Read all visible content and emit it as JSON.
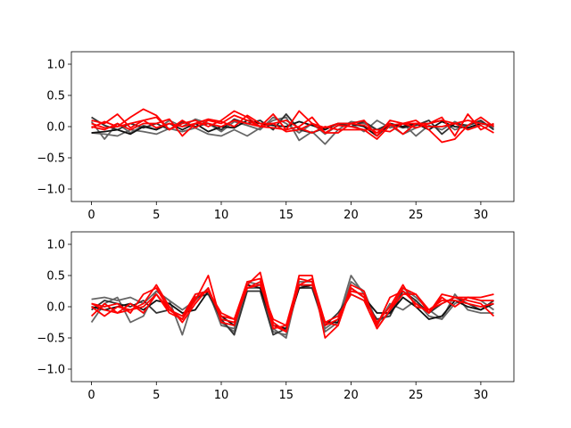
{
  "chart_data": [
    {
      "type": "line",
      "title": "",
      "xlabel": "",
      "ylabel": "",
      "xlim": [
        -1.55,
        32.55
      ],
      "ylim": [
        -1.2,
        1.2
      ],
      "xticks": [
        0,
        5,
        10,
        15,
        20,
        25,
        30
      ],
      "xtick_labels": [
        "0",
        "5",
        "10",
        "15",
        "20",
        "25",
        "30"
      ],
      "yticks": [
        -1.0,
        -0.5,
        0.0,
        0.5,
        1.0
      ],
      "ytick_labels": [
        "−1.0",
        "−0.5",
        "0.0",
        "0.5",
        "1.0"
      ],
      "grid": false,
      "legend": "none",
      "x": [
        0,
        1,
        2,
        3,
        4,
        5,
        6,
        7,
        8,
        9,
        10,
        11,
        12,
        13,
        14,
        15,
        16,
        17,
        18,
        19,
        20,
        21,
        22,
        23,
        24,
        25,
        26,
        27,
        28,
        29,
        30,
        31
      ],
      "series": [
        {
          "color": "#666666",
          "values": [
            -0.1,
            -0.12,
            -0.15,
            -0.05,
            -0.08,
            -0.12,
            -0.03,
            -0.08,
            -0.02,
            -0.12,
            -0.15,
            -0.05,
            -0.15,
            -0.02,
            0.1,
            0.15,
            -0.22,
            -0.08,
            -0.28,
            -0.05,
            0.08,
            0.05,
            -0.05,
            0.02,
            -0.12,
            -0.02,
            0.05,
            0.1,
            -0.05,
            0.02,
            0.08,
            -0.02
          ]
        },
        {
          "color": "#666666",
          "values": [
            0.08,
            -0.2,
            0.05,
            -0.1,
            0.02,
            -0.05,
            0.1,
            0.0,
            0.12,
            0.05,
            -0.08,
            0.08,
            0.02,
            -0.05,
            0.15,
            0.05,
            -0.1,
            0.05,
            -0.12,
            0.02,
            0.05,
            -0.08,
            0.1,
            -0.02,
            0.05,
            -0.15,
            0.02,
            -0.05,
            0.08,
            -0.02,
            0.05,
            0.0
          ]
        },
        {
          "color": "#333333",
          "values": [
            0.15,
            0.02,
            -0.05,
            0.05,
            -0.02,
            0.05,
            -0.05,
            0.08,
            0.0,
            0.05,
            -0.05,
            0.12,
            0.05,
            0.1,
            -0.05,
            0.2,
            -0.05,
            -0.1,
            -0.02,
            0.05,
            0.0,
            0.08,
            -0.05,
            0.05,
            -0.02,
            0.02,
            0.1,
            -0.12,
            0.05,
            0.02,
            0.1,
            -0.05
          ]
        },
        {
          "color": "#111111",
          "values": [
            -0.1,
            -0.08,
            -0.05,
            -0.12,
            0.0,
            -0.05,
            0.05,
            -0.05,
            0.05,
            -0.08,
            0.0,
            -0.02,
            0.1,
            0.05,
            0.02,
            0.0,
            0.08,
            0.02,
            -0.05,
            0.05,
            0.05,
            0.0,
            -0.15,
            0.05,
            0.0,
            0.05,
            -0.05,
            0.08,
            0.0,
            -0.02,
            0.05,
            0.02
          ]
        },
        {
          "color": "#ff0000",
          "values": [
            0.1,
            0.05,
            0.2,
            -0.02,
            0.1,
            0.15,
            -0.05,
            0.05,
            0.1,
            0.0,
            0.1,
            0.25,
            0.15,
            0.0,
            0.2,
            -0.05,
            0.25,
            0.05,
            -0.1,
            0.02,
            0.0,
            -0.05,
            -0.2,
            0.02,
            0.05,
            -0.02,
            0.05,
            0.15,
            -0.15,
            0.2,
            -0.05,
            0.05
          ]
        },
        {
          "color": "#ff0000",
          "values": [
            0.05,
            -0.02,
            0.0,
            0.15,
            0.28,
            0.18,
            -0.05,
            0.1,
            -0.02,
            0.1,
            0.05,
            0.18,
            0.1,
            0.0,
            -0.02,
            -0.05,
            0.0,
            0.15,
            -0.1,
            -0.1,
            0.05,
            0.02,
            -0.1,
            0.05,
            -0.12,
            0.05,
            0.0,
            0.0,
            0.05,
            -0.05,
            0.02,
            -0.1
          ]
        },
        {
          "color": "#ff0000",
          "values": [
            0.0,
            -0.05,
            0.05,
            -0.05,
            0.05,
            0.05,
            0.12,
            -0.15,
            0.05,
            0.05,
            0.0,
            0.1,
            0.05,
            0.0,
            0.05,
            -0.08,
            -0.05,
            0.05,
            -0.02,
            0.05,
            0.05,
            0.1,
            -0.15,
            0.1,
            0.05,
            0.1,
            -0.05,
            -0.25,
            -0.2,
            0.02,
            0.15,
            0.0
          ]
        },
        {
          "color": "#ff0000",
          "values": [
            -0.02,
            0.08,
            0.0,
            0.05,
            0.1,
            -0.02,
            0.05,
            0.0,
            0.05,
            0.12,
            0.08,
            0.0,
            0.18,
            0.05,
            0.05,
            0.1,
            -0.02,
            -0.1,
            0.0,
            -0.05,
            -0.05,
            -0.05,
            -0.05,
            -0.08,
            0.05,
            0.05,
            0.05,
            0.1,
            0.05,
            0.1,
            0.05,
            0.02
          ]
        }
      ]
    },
    {
      "type": "line",
      "title": "",
      "xlabel": "",
      "ylabel": "",
      "xlim": [
        -1.55,
        32.55
      ],
      "ylim": [
        -1.2,
        1.2
      ],
      "xticks": [
        0,
        5,
        10,
        15,
        20,
        25,
        30
      ],
      "xtick_labels": [
        "0",
        "5",
        "10",
        "15",
        "20",
        "25",
        "30"
      ],
      "yticks": [
        -1.0,
        -0.5,
        0.0,
        0.5,
        1.0
      ],
      "ytick_labels": [
        "−1.0",
        "−0.5",
        "0.0",
        "0.5",
        "1.0"
      ],
      "grid": false,
      "legend": "none",
      "x": [
        0,
        1,
        2,
        3,
        4,
        5,
        6,
        7,
        8,
        9,
        10,
        11,
        12,
        13,
        14,
        15,
        16,
        17,
        18,
        19,
        20,
        21,
        22,
        23,
        24,
        25,
        26,
        27,
        28,
        29,
        30,
        31
      ],
      "series": [
        {
          "color": "#666666",
          "values": [
            0.12,
            0.15,
            0.1,
            0.15,
            0.05,
            0.25,
            0.1,
            -0.45,
            0.2,
            0.25,
            -0.3,
            -0.35,
            0.3,
            0.3,
            -0.4,
            -0.45,
            0.35,
            0.3,
            -0.35,
            -0.2,
            0.5,
            0.2,
            -0.3,
            0.05,
            -0.05,
            0.1,
            -0.15,
            -0.2,
            0.2,
            -0.05,
            -0.1,
            -0.1
          ]
        },
        {
          "color": "#666666",
          "values": [
            -0.25,
            0.05,
            0.15,
            -0.25,
            -0.15,
            0.25,
            0.1,
            -0.05,
            0.1,
            0.3,
            -0.25,
            -0.4,
            0.4,
            0.35,
            -0.35,
            -0.5,
            0.4,
            0.4,
            -0.4,
            -0.25,
            0.4,
            0.25,
            -0.25,
            -0.1,
            0.3,
            0.15,
            -0.05,
            -0.2,
            0.05,
            0.15,
            0.1,
            -0.05
          ]
        },
        {
          "color": "#333333",
          "values": [
            -0.05,
            0.1,
            0.05,
            0.0,
            0.1,
            -0.1,
            -0.05,
            -0.15,
            0.15,
            0.2,
            -0.2,
            -0.45,
            0.25,
            0.25,
            -0.45,
            -0.35,
            0.3,
            0.3,
            -0.3,
            -0.1,
            0.2,
            0.1,
            -0.2,
            -0.15,
            0.25,
            0.1,
            -0.1,
            0.05,
            0.15,
            0.05,
            -0.05,
            0.1
          ]
        },
        {
          "color": "#111111",
          "values": [
            0.0,
            -0.05,
            0.0,
            0.05,
            -0.05,
            0.1,
            0.05,
            -0.1,
            -0.05,
            0.25,
            -0.15,
            -0.3,
            0.35,
            0.3,
            -0.3,
            -0.35,
            0.3,
            0.35,
            -0.25,
            -0.25,
            0.3,
            0.15,
            -0.1,
            -0.1,
            0.15,
            0.0,
            -0.2,
            -0.15,
            0.1,
            0.0,
            -0.05,
            0.05
          ]
        },
        {
          "color": "#ff0000",
          "values": [
            0.05,
            0.0,
            0.05,
            -0.1,
            0.2,
            0.3,
            -0.05,
            -0.2,
            0.1,
            0.5,
            -0.25,
            -0.3,
            0.35,
            0.55,
            -0.3,
            -0.4,
            0.5,
            0.5,
            -0.5,
            -0.3,
            0.35,
            0.25,
            -0.35,
            -0.05,
            0.3,
            0.2,
            -0.05,
            0.05,
            0.15,
            0.1,
            0.05,
            -0.15
          ]
        },
        {
          "color": "#ff0000",
          "values": [
            -0.15,
            0.05,
            -0.1,
            -0.05,
            0.05,
            0.35,
            0.0,
            -0.25,
            0.05,
            0.3,
            -0.2,
            -0.25,
            0.3,
            0.4,
            -0.35,
            -0.3,
            0.45,
            0.4,
            -0.3,
            -0.2,
            0.25,
            0.2,
            -0.3,
            0.15,
            0.25,
            0.05,
            -0.1,
            0.15,
            0.0,
            0.15,
            0.1,
            0.1
          ]
        },
        {
          "color": "#ff0000",
          "values": [
            0.0,
            -0.15,
            0.0,
            -0.05,
            0.0,
            0.2,
            -0.1,
            -0.2,
            0.15,
            0.25,
            -0.15,
            -0.2,
            0.4,
            0.45,
            -0.25,
            -0.4,
            0.35,
            0.35,
            -0.25,
            -0.3,
            0.3,
            0.15,
            -0.25,
            0.0,
            0.35,
            0.0,
            -0.05,
            0.1,
            0.1,
            0.05,
            0.0,
            0.05
          ]
        },
        {
          "color": "#ff0000",
          "values": [
            0.05,
            -0.05,
            -0.1,
            0.05,
            -0.1,
            0.2,
            -0.05,
            -0.15,
            0.2,
            0.25,
            -0.1,
            -0.2,
            0.3,
            0.35,
            -0.2,
            -0.3,
            0.35,
            0.45,
            -0.25,
            -0.15,
            0.2,
            0.1,
            -0.35,
            -0.05,
            0.2,
            0.2,
            -0.1,
            0.2,
            0.15,
            0.15,
            0.15,
            0.2
          ]
        }
      ]
    }
  ]
}
